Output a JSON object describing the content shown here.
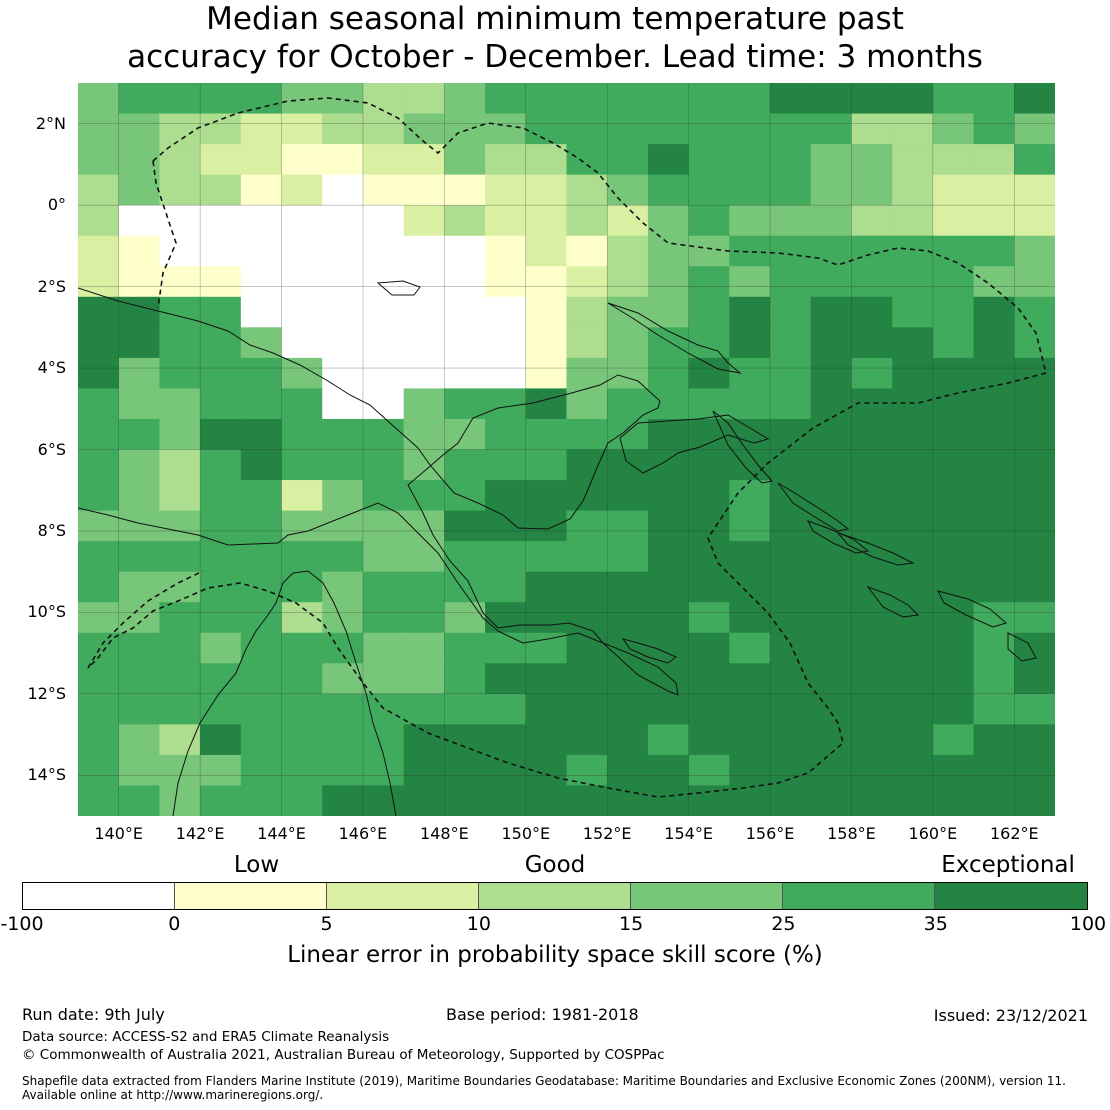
{
  "title_line1": "Median seasonal minimum temperature past",
  "title_line2": "accuracy for October - December. Lead time: 3 months",
  "map": {
    "lon_min": 139,
    "lon_max": 163,
    "lat_min": -15,
    "lat_max": 3,
    "grid_step": 2,
    "x_ticks": [
      {
        "lon": 140,
        "label": "140°E"
      },
      {
        "lon": 142,
        "label": "142°E"
      },
      {
        "lon": 144,
        "label": "144°E"
      },
      {
        "lon": 146,
        "label": "146°E"
      },
      {
        "lon": 148,
        "label": "148°E"
      },
      {
        "lon": 150,
        "label": "150°E"
      },
      {
        "lon": 152,
        "label": "152°E"
      },
      {
        "lon": 154,
        "label": "154°E"
      },
      {
        "lon": 156,
        "label": "156°E"
      },
      {
        "lon": 158,
        "label": "158°E"
      },
      {
        "lon": 160,
        "label": "160°E"
      },
      {
        "lon": 162,
        "label": "162°E"
      }
    ],
    "y_ticks": [
      {
        "lat": 2,
        "label": "2°N"
      },
      {
        "lat": 0,
        "label": "0°"
      },
      {
        "lat": -2,
        "label": "2°S"
      },
      {
        "lat": -4,
        "label": "4°S"
      },
      {
        "lat": -6,
        "label": "6°S"
      },
      {
        "lat": -8,
        "label": "8°S"
      },
      {
        "lat": -10,
        "label": "10°S"
      },
      {
        "lat": -12,
        "label": "12°S"
      },
      {
        "lat": -14,
        "label": "14°S"
      }
    ]
  },
  "colorbar": {
    "categories": [
      {
        "label": "Low",
        "position": 0.22
      },
      {
        "label": "Good",
        "position": 0.5
      },
      {
        "label": "Exceptional",
        "position": 0.925
      }
    ],
    "ticks": [
      "-100",
      "0",
      "5",
      "10",
      "15",
      "25",
      "35",
      "100"
    ],
    "colors": [
      "#ffffff",
      "#ffffcc",
      "#d9f0a3",
      "#addd8e",
      "#78c679",
      "#41ab5d",
      "#238443"
    ],
    "label": "Linear error in probability space skill score (%)"
  },
  "footer": {
    "run_date": "Run date: 9th July",
    "base_period": "Base period: 1981-2018",
    "issued": "Issued: 23/12/2021",
    "data_source": "Data source: ACCESS-S2 and ERA5 Climate Reanalysis",
    "copyright": "© Commonwealth of Australia 2021, Australian Bureau of Meteorology, Supported by COSPPac",
    "shapefile_line1": "Shapefile data extracted from Flanders Marine Institute (2019), Maritime Boundaries Geodatabase: Maritime Boundaries and Exclusive Economic Zones (200NM), version 11.",
    "shapefile_line2": "Available online at http://www.marineregions.org/."
  },
  "chart_data": {
    "type": "heatmap",
    "title": "Median seasonal minimum temperature past accuracy for October - December. Lead time: 3 months",
    "xlabel": "",
    "ylabel": "",
    "x_range": [
      139,
      163
    ],
    "y_range": [
      -15,
      3
    ],
    "cell_size_deg": 0.8,
    "class_bounds": [
      -100,
      0,
      5,
      10,
      15,
      25,
      35,
      100
    ],
    "row_order": "north-to-south",
    "rows": [
      "455554433455555556666556",
      "443322334445555555533454",
      "443221122433556555443335",
      "343312011122345555443222",
      "300000002322324544433222",
      "210000000012134455555554",
      "211100000011234545555544",
      "665500000001344565665565",
      "665540000001345565666565",
      "645554000001445655656666",
      "544555004556455555666666",
      "554665554455556666666666",
      "543565554555666666666666",
      "543552455566666656666666",
      "444554444666556656666666",
      "555555544555556666666666",
      "544555455556666666666666",
      "445553455466666566666655",
      "555455544555666656666656",
      "555555444566666666666656",
      "555555555556666666666655",
      "543655556666665666666566",
      "544455556666566566666666",
      "554555666666666666666666"
    ],
    "legend_classes": [
      "-100 to 0",
      "0 to 5",
      "5 to 10",
      "10 to 15",
      "15 to 25",
      "25 to 35",
      "35 to 100"
    ],
    "legend_categories": [
      "Low",
      "Good",
      "Exceptional"
    ]
  }
}
